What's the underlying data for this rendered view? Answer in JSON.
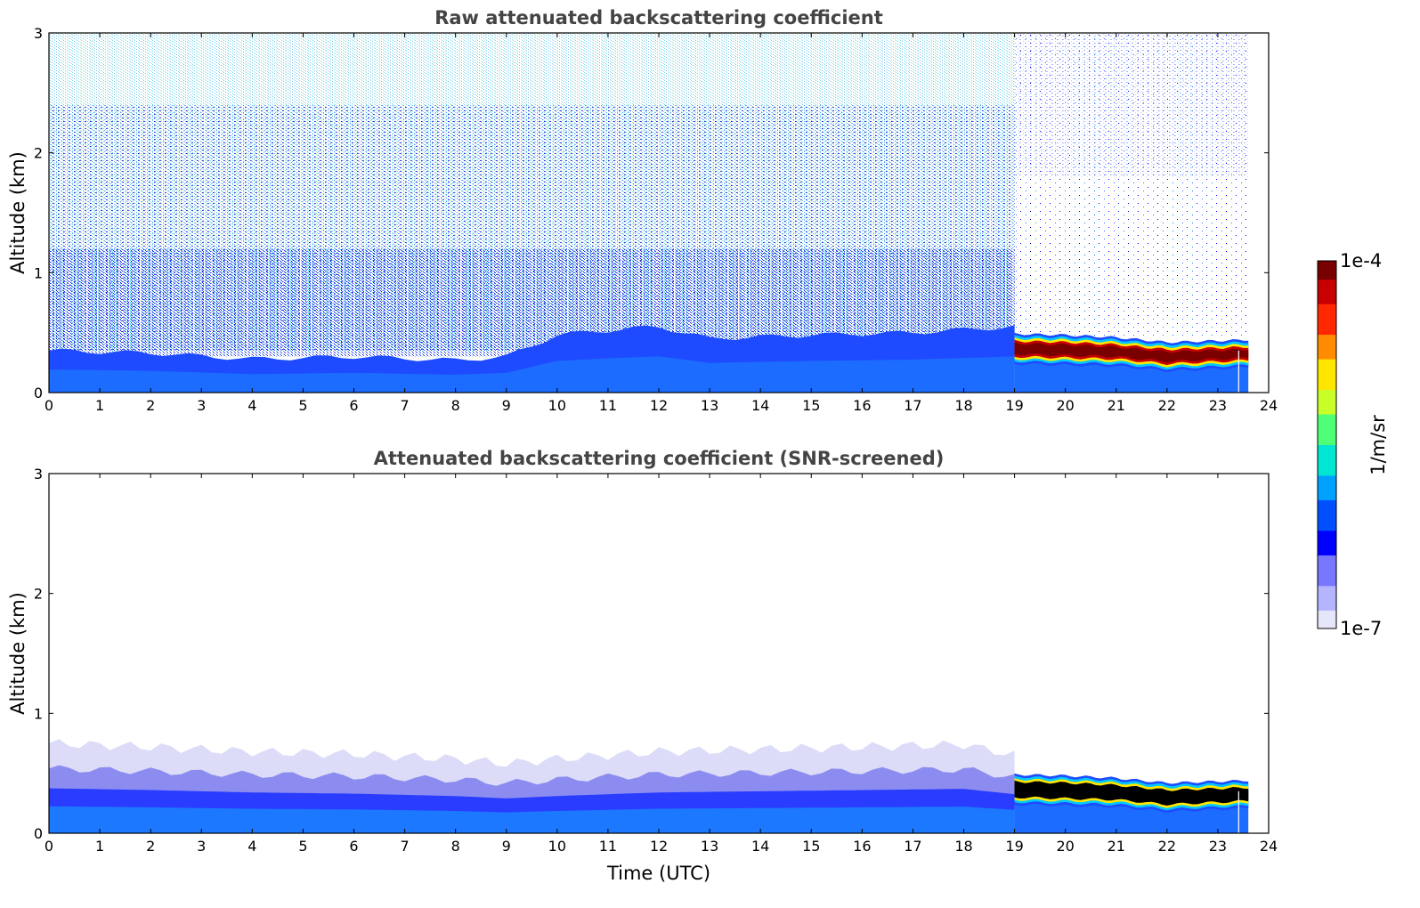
{
  "chart_data": [
    {
      "type": "heatmap",
      "title": "Raw attenuated backscattering coefficient",
      "xlabel": "",
      "ylabel": "Altitude (km)",
      "xlim": [
        0,
        24
      ],
      "ylim": [
        0,
        3
      ],
      "xticks": [
        "0",
        "1",
        "2",
        "3",
        "4",
        "5",
        "6",
        "7",
        "8",
        "9",
        "10",
        "11",
        "12",
        "13",
        "14",
        "15",
        "16",
        "17",
        "18",
        "19",
        "20",
        "21",
        "22",
        "23",
        "24"
      ],
      "yticks": [
        "0",
        "1",
        "2",
        "3"
      ],
      "data_end_time": 23.6,
      "noise_extends_to_km": 3.0,
      "boundary_layer_top_km": [
        {
          "time": 0,
          "km": 0.35
        },
        {
          "time": 2,
          "km": 0.33
        },
        {
          "time": 4,
          "km": 0.28
        },
        {
          "time": 6,
          "km": 0.3
        },
        {
          "time": 8,
          "km": 0.27
        },
        {
          "time": 9,
          "km": 0.3
        },
        {
          "time": 10,
          "km": 0.48
        },
        {
          "time": 11,
          "km": 0.52
        },
        {
          "time": 12,
          "km": 0.55
        },
        {
          "time": 13,
          "km": 0.45
        },
        {
          "time": 15,
          "km": 0.48
        },
        {
          "time": 17,
          "km": 0.5
        },
        {
          "time": 19,
          "km": 0.55
        }
      ],
      "cloud_layer_km": [
        {
          "time": 19.0,
          "base": 0.28,
          "top": 0.45
        },
        {
          "time": 20.0,
          "base": 0.27,
          "top": 0.44
        },
        {
          "time": 21.0,
          "base": 0.26,
          "top": 0.42
        },
        {
          "time": 22.0,
          "base": 0.22,
          "top": 0.38
        },
        {
          "time": 23.6,
          "base": 0.25,
          "top": 0.4
        }
      ]
    },
    {
      "type": "heatmap",
      "title": "Attenuated backscattering coefficient (SNR-screened)",
      "xlabel": "Time (UTC)",
      "ylabel": "Altitude (km)",
      "xlim": [
        0,
        24
      ],
      "ylim": [
        0,
        3
      ],
      "xticks": [
        "0",
        "1",
        "2",
        "3",
        "4",
        "5",
        "6",
        "7",
        "8",
        "9",
        "10",
        "11",
        "12",
        "13",
        "14",
        "15",
        "16",
        "17",
        "18",
        "19",
        "20",
        "21",
        "22",
        "23",
        "24"
      ],
      "yticks": [
        "0",
        "1",
        "2",
        "3"
      ],
      "data_end_time": 23.6,
      "screened_top_km": [
        {
          "time": 0,
          "km": 0.75
        },
        {
          "time": 2,
          "km": 0.72
        },
        {
          "time": 4,
          "km": 0.68
        },
        {
          "time": 6,
          "km": 0.66
        },
        {
          "time": 8,
          "km": 0.62
        },
        {
          "time": 9,
          "km": 0.58
        },
        {
          "time": 10,
          "km": 0.62
        },
        {
          "time": 12,
          "km": 0.68
        },
        {
          "time": 14,
          "km": 0.7
        },
        {
          "time": 16,
          "km": 0.72
        },
        {
          "time": 18,
          "km": 0.74
        },
        {
          "time": 19,
          "km": 0.65
        }
      ],
      "cloud_layer_km": [
        {
          "time": 19.0,
          "base": 0.28,
          "top": 0.45
        },
        {
          "time": 20.0,
          "base": 0.27,
          "top": 0.44
        },
        {
          "time": 21.0,
          "base": 0.26,
          "top": 0.42
        },
        {
          "time": 22.0,
          "base": 0.22,
          "top": 0.38
        },
        {
          "time": 23.6,
          "base": 0.25,
          "top": 0.4
        }
      ]
    }
  ],
  "colorbar": {
    "label": "1/m/sr",
    "max_label": "1e-4",
    "min_label": "1e-7",
    "colors": [
      "#e6e6fa",
      "#b4b4ff",
      "#7878ff",
      "#0000ff",
      "#0050ff",
      "#00a0ff",
      "#00e6d2",
      "#50ff78",
      "#c8ff28",
      "#ffe600",
      "#ff8c00",
      "#ff2800",
      "#c80000",
      "#780000"
    ]
  }
}
